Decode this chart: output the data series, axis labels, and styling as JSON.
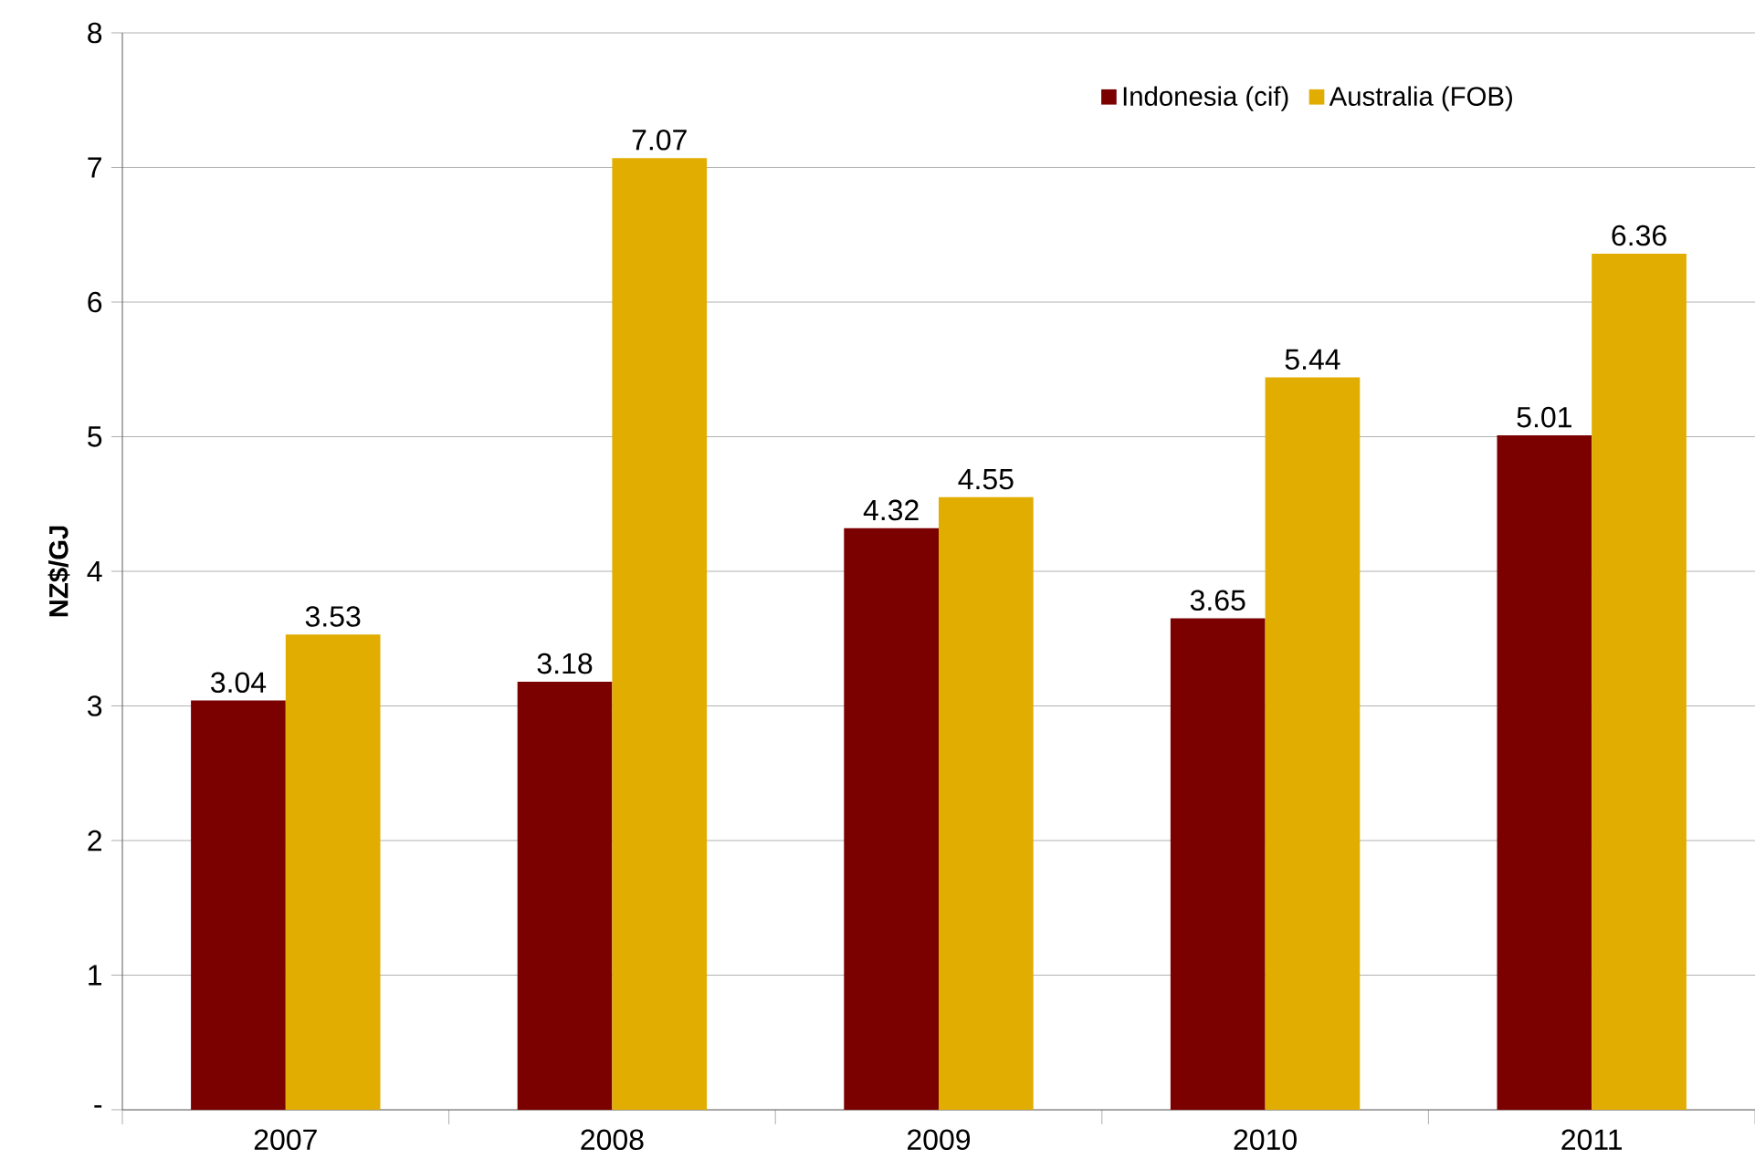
{
  "chart_data": {
    "type": "bar",
    "ylabel": "NZ$/GJ",
    "categories": [
      "2007",
      "2008",
      "2009",
      "2010",
      "2011"
    ],
    "series": [
      {
        "name": "Indonesia (cif)",
        "color": "#7b0000",
        "values": [
          3.04,
          3.18,
          4.32,
          3.65,
          5.01
        ]
      },
      {
        "name": "Australia (FOB)",
        "color": "#e1ad00",
        "values": [
          3.53,
          7.07,
          4.55,
          5.44,
          6.36
        ]
      }
    ],
    "ylim": [
      0,
      8
    ],
    "yticks": [
      {
        "value": 0,
        "label": "-"
      },
      1,
      2,
      3,
      4,
      5,
      6,
      7,
      8
    ],
    "grid": "y",
    "legend": "top right",
    "data_labels": true
  }
}
